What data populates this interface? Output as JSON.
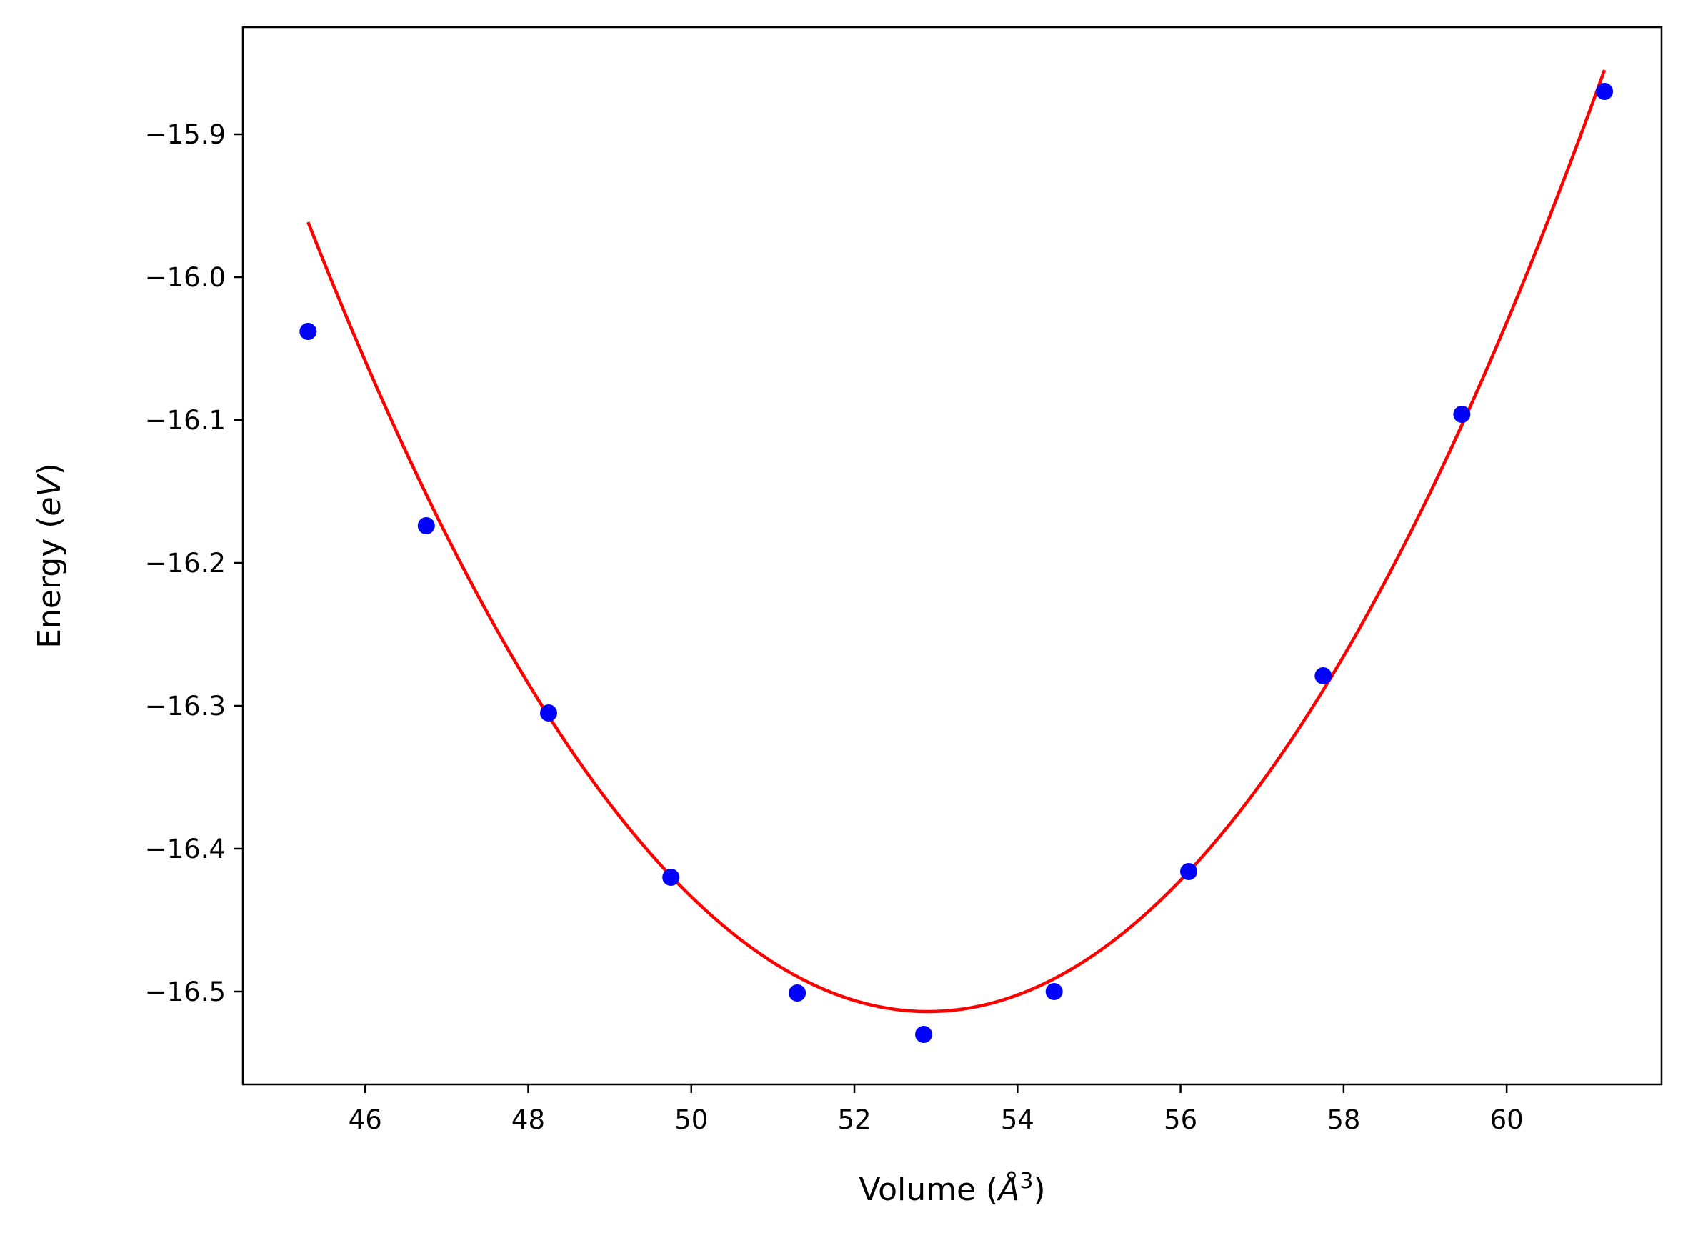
{
  "chart_data": {
    "type": "scatter",
    "title": "",
    "xlabel": "Volume (Å³)",
    "xlabel_parts": {
      "pre": "Volume (",
      "sym": "Å",
      "sup": "3",
      "post": ")"
    },
    "ylabel": "Energy (eV)",
    "ylabel_parts": {
      "pre": "Energy (",
      "sym": "eV",
      "post": ")"
    },
    "xlim": [
      44.5,
      61.9
    ],
    "ylim": [
      -16.565,
      -15.825
    ],
    "xticks": [
      46,
      48,
      50,
      52,
      54,
      56,
      58,
      60
    ],
    "xtick_labels": [
      "46",
      "48",
      "50",
      "52",
      "54",
      "56",
      "58",
      "60"
    ],
    "yticks": [
      -15.9,
      -16.0,
      -16.1,
      -16.2,
      -16.3,
      -16.4,
      -16.5
    ],
    "ytick_labels": [
      "−15.9",
      "−16.0",
      "−16.1",
      "−16.2",
      "−16.3",
      "−16.4",
      "−16.5"
    ],
    "grid": false,
    "series": [
      {
        "kind": "scatter",
        "color": "#0000ff",
        "x": [
          45.3,
          46.75,
          48.25,
          49.75,
          51.3,
          52.85,
          54.45,
          56.1,
          57.75,
          59.45,
          61.2
        ],
        "y": [
          -16.038,
          -16.174,
          -16.305,
          -16.42,
          -16.501,
          -16.53,
          -16.5,
          -16.416,
          -16.279,
          -16.096,
          -15.87
        ]
      },
      {
        "kind": "line",
        "color": "#ff0000",
        "fit": "quadratic",
        "x_range": [
          45.3,
          61.2
        ],
        "vertex": [
          52.9,
          -16.514
        ],
        "through": [
          61.2,
          -15.855
        ]
      }
    ]
  }
}
